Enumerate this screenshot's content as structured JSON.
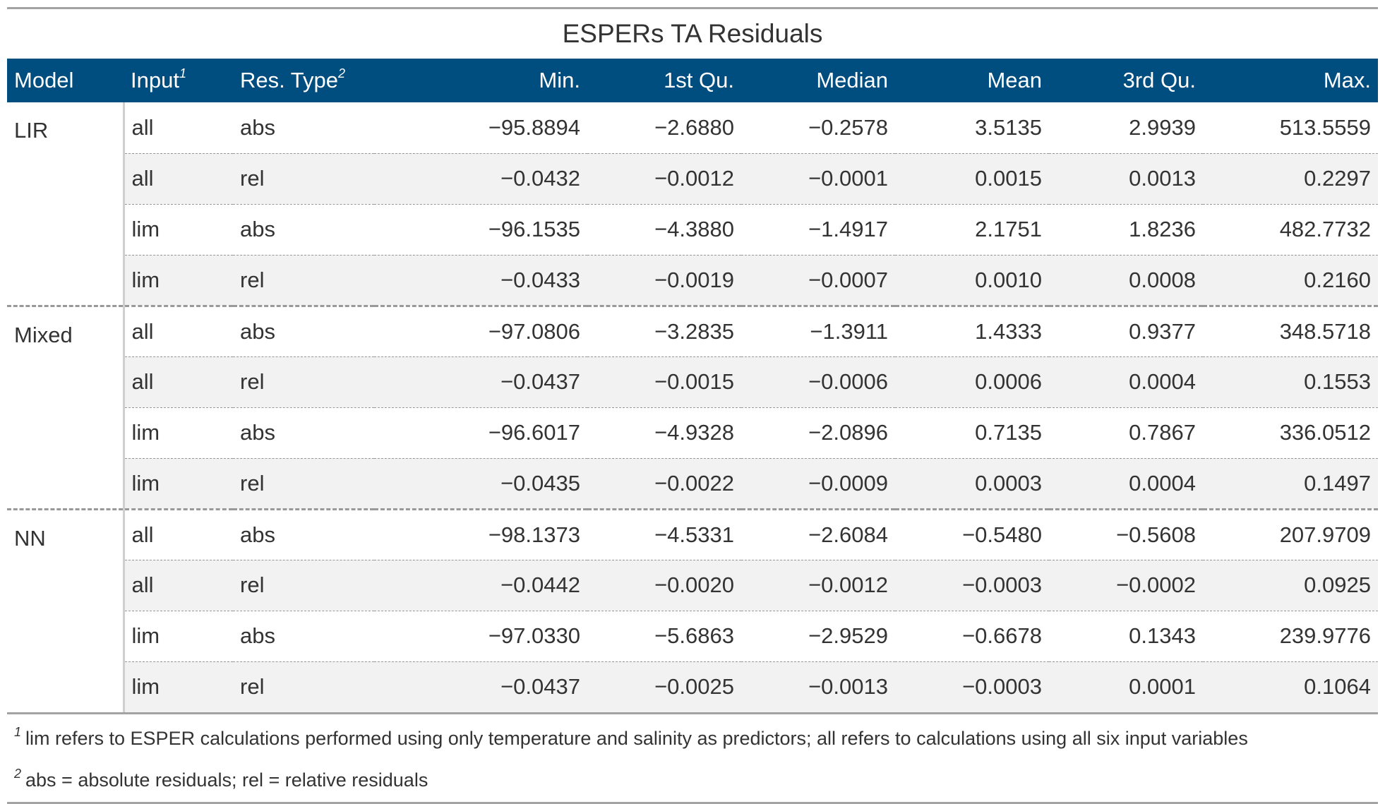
{
  "table": {
    "title": "ESPERs TA Residuals",
    "headers": {
      "model": "Model",
      "input": "Input",
      "input_mark": "1",
      "res_type": "Res. Type",
      "res_type_mark": "2",
      "min": "Min.",
      "q1": "1st Qu.",
      "median": "Median",
      "mean": "Mean",
      "q3": "3rd Qu.",
      "max": "Max."
    },
    "groups": [
      {
        "model": "LIR",
        "rows": [
          {
            "input": "all",
            "type": "abs",
            "min": "−95.8894",
            "q1": "−2.6880",
            "median": "−0.2578",
            "mean": "3.5135",
            "q3": "2.9939",
            "max": "513.5559"
          },
          {
            "input": "all",
            "type": "rel",
            "min": "−0.0432",
            "q1": "−0.0012",
            "median": "−0.0001",
            "mean": "0.0015",
            "q3": "0.0013",
            "max": "0.2297"
          },
          {
            "input": "lim",
            "type": "abs",
            "min": "−96.1535",
            "q1": "−4.3880",
            "median": "−1.4917",
            "mean": "2.1751",
            "q3": "1.8236",
            "max": "482.7732"
          },
          {
            "input": "lim",
            "type": "rel",
            "min": "−0.0433",
            "q1": "−0.0019",
            "median": "−0.0007",
            "mean": "0.0010",
            "q3": "0.0008",
            "max": "0.2160"
          }
        ]
      },
      {
        "model": "Mixed",
        "rows": [
          {
            "input": "all",
            "type": "abs",
            "min": "−97.0806",
            "q1": "−3.2835",
            "median": "−1.3911",
            "mean": "1.4333",
            "q3": "0.9377",
            "max": "348.5718"
          },
          {
            "input": "all",
            "type": "rel",
            "min": "−0.0437",
            "q1": "−0.0015",
            "median": "−0.0006",
            "mean": "0.0006",
            "q3": "0.0004",
            "max": "0.1553"
          },
          {
            "input": "lim",
            "type": "abs",
            "min": "−96.6017",
            "q1": "−4.9328",
            "median": "−2.0896",
            "mean": "0.7135",
            "q3": "0.7867",
            "max": "336.0512"
          },
          {
            "input": "lim",
            "type": "rel",
            "min": "−0.0435",
            "q1": "−0.0022",
            "median": "−0.0009",
            "mean": "0.0003",
            "q3": "0.0004",
            "max": "0.1497"
          }
        ]
      },
      {
        "model": "NN",
        "rows": [
          {
            "input": "all",
            "type": "abs",
            "min": "−98.1373",
            "q1": "−4.5331",
            "median": "−2.6084",
            "mean": "−0.5480",
            "q3": "−0.5608",
            "max": "207.9709"
          },
          {
            "input": "all",
            "type": "rel",
            "min": "−0.0442",
            "q1": "−0.0020",
            "median": "−0.0012",
            "mean": "−0.0003",
            "q3": "−0.0002",
            "max": "0.0925"
          },
          {
            "input": "lim",
            "type": "abs",
            "min": "−97.0330",
            "q1": "−5.6863",
            "median": "−2.9529",
            "mean": "−0.6678",
            "q3": "0.1343",
            "max": "239.9776"
          },
          {
            "input": "lim",
            "type": "rel",
            "min": "−0.0437",
            "q1": "−0.0025",
            "median": "−0.0013",
            "mean": "−0.0003",
            "q3": "0.0001",
            "max": "0.1064"
          }
        ]
      }
    ],
    "footnotes": [
      {
        "mark": "1",
        "text": "lim refers to ESPER calculations performed using only temperature and salinity as predictors; all refers to calculations using all six input variables"
      },
      {
        "mark": "2",
        "text": "abs = absolute residuals; rel = relative residuals"
      }
    ]
  }
}
